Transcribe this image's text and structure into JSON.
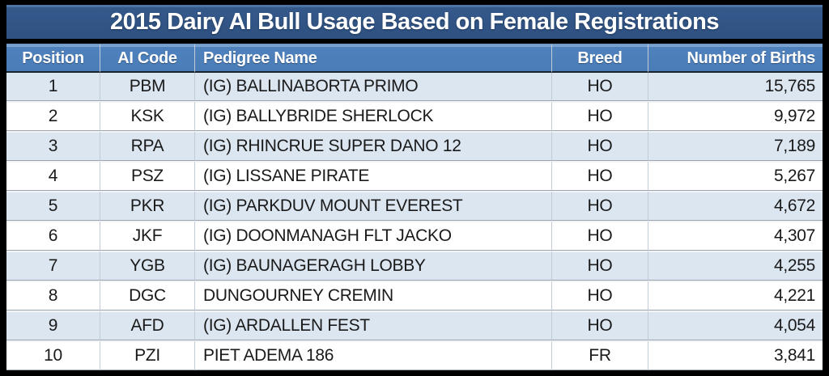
{
  "title": "2015 Dairy AI Bull Usage Based on Female Registrations",
  "chart_data": {
    "type": "table",
    "title": "2015 Dairy AI Bull Usage Based on Female Registrations",
    "columns": [
      "Position",
      "AI Code",
      "Pedigree Name",
      "Breed",
      "Number of Births"
    ],
    "rows": [
      [
        "1",
        "PBM",
        "(IG) BALLINABORTA PRIMO",
        "HO",
        "15,765"
      ],
      [
        "2",
        "KSK",
        "(IG) BALLYBRIDE SHERLOCK",
        "HO",
        "9,972"
      ],
      [
        "3",
        "RPA",
        "(IG) RHINCRUE SUPER DANO 12",
        "HO",
        "7,189"
      ],
      [
        "4",
        "PSZ",
        "(IG) LISSANE PIRATE",
        "HO",
        "5,267"
      ],
      [
        "5",
        "PKR",
        "(IG) PARKDUV MOUNT EVEREST",
        "HO",
        "4,672"
      ],
      [
        "6",
        "JKF",
        "(IG) DOONMANAGH FLT JACKO",
        "HO",
        "4,307"
      ],
      [
        "7",
        "YGB",
        "(IG) BAUNAGERAGH LOBBY",
        "HO",
        "4,255"
      ],
      [
        "8",
        "DGC",
        "DUNGOURNEY CREMIN",
        "HO",
        "4,221"
      ],
      [
        "9",
        "AFD",
        "(IG) ARDALLEN FEST",
        "HO",
        "4,054"
      ],
      [
        "10",
        "PZI",
        "PIET ADEMA 186",
        "FR",
        "3,841"
      ]
    ],
    "births_values": [
      15765,
      9972,
      7189,
      5267,
      4672,
      4307,
      4255,
      4221,
      4054,
      3841
    ]
  },
  "colors": {
    "frame_border": "#000000",
    "title_bg": "#34598b",
    "title_text": "#ffffff",
    "header_bg": "#4f81bd",
    "header_text": "#ffffff",
    "band_row_bg": "#dce6f1",
    "plain_row_bg": "#ffffff",
    "cell_text": "#1a1a1a",
    "grid_line": "#c3cbd6"
  }
}
